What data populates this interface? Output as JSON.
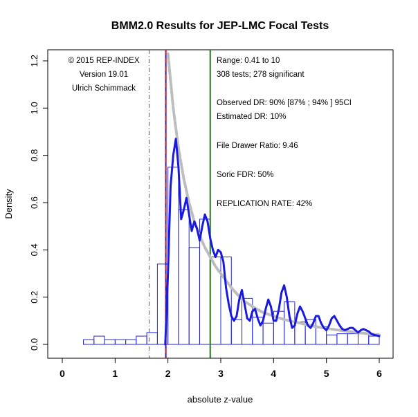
{
  "chart_data": {
    "type": "bar",
    "title": "BMM2.0 Results for JEP-LMC Focal Tests",
    "xlabel": "absolute z-value",
    "ylabel": "Density",
    "xlim": [
      0,
      6
    ],
    "ylim": [
      0,
      1.2
    ],
    "x_ticks": [
      "0",
      "1",
      "2",
      "3",
      "4",
      "5",
      "6"
    ],
    "y_ticks": [
      "0.0",
      "0.2",
      "0.4",
      "0.6",
      "0.8",
      "1.0",
      "1.2"
    ],
    "histogram_bar_color": "#2222dd",
    "bin_width": 0.2,
    "bin_starts": [
      0.0,
      0.2,
      0.4,
      0.6,
      0.8,
      1.0,
      1.2,
      1.4,
      1.6,
      1.8,
      2.0,
      2.2,
      2.4,
      2.6,
      2.8,
      3.0,
      3.2,
      3.4,
      3.6,
      3.8,
      4.0,
      4.2,
      4.4,
      4.6,
      4.8,
      5.0,
      5.2,
      5.4,
      5.6,
      5.8
    ],
    "bin_values": [
      0.0,
      0.0,
      0.02,
      0.035,
      0.02,
      0.02,
      0.02,
      0.035,
      0.05,
      0.34,
      0.75,
      0.57,
      0.41,
      0.53,
      0.37,
      0.37,
      0.105,
      0.195,
      0.115,
      0.09,
      0.14,
      0.18,
      0.095,
      0.105,
      0.075,
      0.04,
      0.045,
      0.045,
      0.045,
      0.035
    ],
    "series": [
      {
        "color": "#1a1adf",
        "x": [
          1.95,
          2.0,
          2.05,
          2.1,
          2.15,
          2.2,
          2.25,
          2.3,
          2.35,
          2.4,
          2.45,
          2.5,
          2.55,
          2.6,
          2.65,
          2.7,
          2.75,
          2.8,
          2.85,
          2.9,
          2.95,
          3.0,
          3.05,
          3.1,
          3.15,
          3.2,
          3.25,
          3.3,
          3.35,
          3.4,
          3.45,
          3.5,
          3.55,
          3.6,
          3.65,
          3.7,
          3.75,
          3.8,
          3.85,
          3.9,
          3.95,
          4.0,
          4.05,
          4.1,
          4.15,
          4.2,
          4.25,
          4.3,
          4.35,
          4.4,
          4.45,
          4.5,
          4.55,
          4.6,
          4.65,
          4.7,
          4.75,
          4.8,
          4.85,
          4.9,
          4.95,
          5.0,
          5.05,
          5.1,
          5.15,
          5.2,
          5.25,
          5.3,
          5.35,
          5.4,
          5.45,
          5.5,
          5.55,
          5.6,
          5.65,
          5.7,
          5.75,
          5.8,
          5.85,
          5.9,
          5.95,
          6.0
        ],
        "y": [
          0.0,
          0.3,
          0.67,
          0.8,
          0.87,
          0.75,
          0.53,
          0.57,
          0.62,
          0.55,
          0.48,
          0.52,
          0.49,
          0.44,
          0.5,
          0.55,
          0.52,
          0.45,
          0.4,
          0.37,
          0.4,
          0.39,
          0.35,
          0.24,
          0.17,
          0.12,
          0.1,
          0.12,
          0.19,
          0.23,
          0.17,
          0.11,
          0.1,
          0.14,
          0.15,
          0.11,
          0.08,
          0.1,
          0.15,
          0.19,
          0.16,
          0.1,
          0.1,
          0.15,
          0.22,
          0.25,
          0.2,
          0.12,
          0.07,
          0.08,
          0.13,
          0.16,
          0.14,
          0.11,
          0.08,
          0.07,
          0.09,
          0.12,
          0.12,
          0.09,
          0.07,
          0.06,
          0.08,
          0.11,
          0.12,
          0.1,
          0.08,
          0.065,
          0.06,
          0.065,
          0.07,
          0.07,
          0.06,
          0.05,
          0.06,
          0.065,
          0.06,
          0.055,
          0.045,
          0.04,
          0.038,
          0.035
        ]
      },
      {
        "color": "#bdbdbd",
        "x": [
          2.0,
          2.1,
          2.2,
          2.3,
          2.4,
          2.5,
          2.6,
          2.7,
          2.8,
          2.9,
          3.0,
          3.2,
          3.4,
          3.6,
          3.8,
          4.0,
          4.2,
          4.5,
          4.8,
          5.0,
          5.3,
          5.6,
          6.0
        ],
        "y": [
          1.23,
          1.0,
          0.83,
          0.7,
          0.6,
          0.52,
          0.46,
          0.41,
          0.37,
          0.33,
          0.3,
          0.24,
          0.19,
          0.16,
          0.135,
          0.12,
          0.105,
          0.09,
          0.075,
          0.068,
          0.058,
          0.05,
          0.04
        ]
      }
    ],
    "reference_lines": [
      {
        "x": 1.645,
        "color": "#d02020",
        "style": "dashdot"
      },
      {
        "x": 1.96,
        "color": "#1a1adf",
        "style": "solid"
      },
      {
        "x": 1.96,
        "color": "#d02020",
        "style": "dashed"
      },
      {
        "x": 2.8,
        "color": "#1e7b1e",
        "style": "solid"
      }
    ],
    "left_annotations": [
      "© 2015 REP-INDEX",
      "Version 19.01",
      "Ulrich Schimmack"
    ],
    "right_annotations": [
      "Range: 0.41 to 10",
      "308 tests; 278 significant",
      "Observed DR: 90% [87% ; 94% ] 95CI",
      "Estimated DR: 10%",
      "File Drawer Ratio: 9.46",
      "Soric FDR: 50%",
      "REPLICATION RATE: 42%"
    ],
    "grid": false
  }
}
